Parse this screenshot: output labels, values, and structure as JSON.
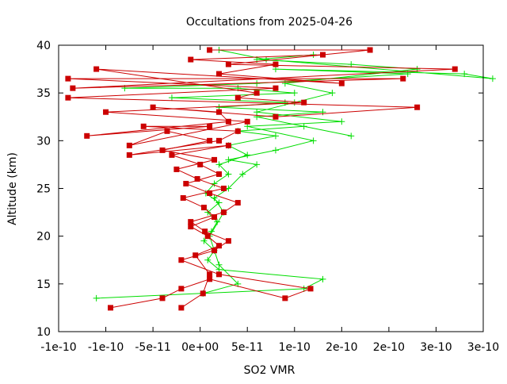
{
  "chart_data": {
    "type": "line",
    "title": "Occultations from 2025-04-26",
    "xlabel": "SO2 VMR",
    "ylabel": "Altitude (km)",
    "xlim": [
      -1.5e-10,
      3e-10
    ],
    "ylim": [
      10,
      40
    ],
    "x_ticks": [
      {
        "v": -1.5e-10,
        "label": "-1e-10"
      },
      {
        "v": -1e-10,
        "label": "-1e-10"
      },
      {
        "v": -5e-11,
        "label": "-5e-11"
      },
      {
        "v": 0,
        "label": "0e+00"
      },
      {
        "v": 5e-11,
        "label": "5e-11"
      },
      {
        "v": 1e-10,
        "label": "1e-10"
      },
      {
        "v": 1.5e-10,
        "label": "2e-10"
      },
      {
        "v": 2e-10,
        "label": "2e-10"
      },
      {
        "v": 2.5e-10,
        "label": "3e-10"
      },
      {
        "v": 3e-10,
        "label": "3e-10"
      }
    ],
    "y_ticks": [
      {
        "v": 10,
        "label": "10"
      },
      {
        "v": 15,
        "label": "15"
      },
      {
        "v": 20,
        "label": "20"
      },
      {
        "v": 25,
        "label": "25"
      },
      {
        "v": 30,
        "label": "30"
      },
      {
        "v": 35,
        "label": "35"
      },
      {
        "v": 40,
        "label": "40"
      }
    ],
    "grid": false,
    "series": [
      {
        "color": "#00dd00",
        "marker": "plus",
        "x": [
          -1.1e-10,
          1.1e-10,
          1.3e-10,
          2e-11,
          8e-12,
          1.5e-11,
          4e-12,
          1.2e-11,
          1.8e-11,
          8e-12,
          2e-11,
          6e-12,
          1.5e-11,
          3e-11,
          2e-11,
          5e-11,
          3e-11,
          8e-11,
          4e-11,
          1.1e-10,
          1.6e-10,
          6e-11,
          1.3e-10,
          2e-11,
          9e-11,
          -3e-11,
          1e-10,
          4e-11,
          -8e-11,
          6e-11,
          2.2e-10,
          8e-11,
          2.8e-10,
          3.1e-10,
          7e-11,
          2e-11
        ],
        "y": [
          13.5,
          14.5,
          15.5,
          16.5,
          17.5,
          18.5,
          19.5,
          20.5,
          21.5,
          22.5,
          23.5,
          24.5,
          25.5,
          26.5,
          27.5,
          28.5,
          29.5,
          30.5,
          31.0,
          31.5,
          30.5,
          32.5,
          33.0,
          33.5,
          34.0,
          34.5,
          35.0,
          35.5,
          35.5,
          36.0,
          37.0,
          37.5,
          37.0,
          36.5,
          38.5,
          39.5
        ]
      },
      {
        "color": "#00dd00",
        "marker": "plus",
        "x": [
          3e-12,
          4e-11,
          2e-11,
          1e-11,
          2.5e-11,
          1.5e-11,
          3e-11,
          4.5e-11,
          6e-11,
          3e-11,
          8e-11,
          1.2e-10,
          5e-11,
          1.5e-10,
          6e-11,
          1e-10,
          1.4e-10,
          9e-11,
          2.3e-10,
          1.6e-10,
          6e-11,
          1.2e-10
        ],
        "y": [
          14.0,
          15.0,
          17.0,
          20.0,
          22.5,
          24.0,
          25.0,
          26.5,
          27.5,
          28.0,
          29.0,
          30.0,
          31.5,
          32.0,
          33.0,
          34.0,
          35.0,
          36.0,
          37.5,
          38.0,
          38.5,
          39.0
        ]
      },
      {
        "color": "#cc0000",
        "marker": "square",
        "x": [
          -9.5e-11,
          -4e-11,
          -2e-11,
          1e-11,
          9e-11,
          1.17e-10,
          2e-11,
          -2e-11,
          1.5e-11,
          3e-11,
          5e-12,
          -1e-11,
          2.5e-11,
          4e-11,
          1e-11,
          -1.5e-11,
          2e-11,
          0,
          -3e-11,
          3e-11,
          -7.5e-11,
          2e-11,
          4e-11,
          -6e-11,
          1e-11,
          -1.2e-10,
          3e-11,
          2e-11,
          -5e-11,
          8e-11,
          2.3e-10,
          -1.4e-10,
          8e-11,
          -1.4e-10,
          2.15e-10,
          -1.35e-10,
          2.7e-10,
          3e-11,
          1.8e-10,
          1e-11
        ],
        "y": [
          12.5,
          13.5,
          14.5,
          15.5,
          13.5,
          14.5,
          16.0,
          17.5,
          18.5,
          19.5,
          20.5,
          21.5,
          22.5,
          23.5,
          24.5,
          25.5,
          26.5,
          27.5,
          28.5,
          29.5,
          28.5,
          30.0,
          31.0,
          31.5,
          31.5,
          30.5,
          32.0,
          33.0,
          33.5,
          32.5,
          33.5,
          34.5,
          35.5,
          36.5,
          36.5,
          35.5,
          37.5,
          38.0,
          39.5,
          39.5
        ]
      },
      {
        "color": "#cc0000",
        "marker": "square",
        "x": [
          -2e-11,
          3e-12,
          1e-11,
          -5e-12,
          2e-11,
          8e-12,
          -1e-11,
          1.5e-11,
          4e-12,
          -1.8e-11,
          2.5e-11,
          -3e-12,
          -2.5e-11,
          1.5e-11,
          -4e-11,
          1e-11,
          -3.5e-11,
          -7.5e-11,
          5e-11,
          -1e-10,
          1.1e-10,
          4e-11,
          6e-11,
          -1.1e-10,
          1.5e-10,
          2e-11,
          8e-11,
          -1e-11,
          1.3e-10
        ],
        "y": [
          12.5,
          14.0,
          16.0,
          18.0,
          19.0,
          20.0,
          21.0,
          22.0,
          23.0,
          24.0,
          25.0,
          26.0,
          27.0,
          28.0,
          29.0,
          30.0,
          31.0,
          29.5,
          32.0,
          33.0,
          34.0,
          34.5,
          35.0,
          37.5,
          36.0,
          37.0,
          38.0,
          38.5,
          39.0
        ]
      }
    ]
  }
}
